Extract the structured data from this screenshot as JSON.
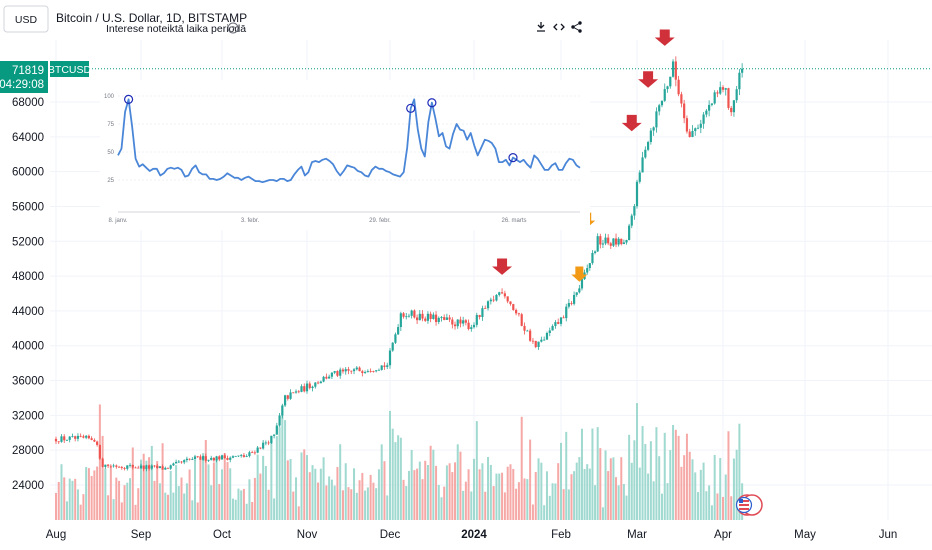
{
  "header": {
    "currency_button": "USD",
    "title": "Bitcoin / U.S. Dollar, 1D, BITSTAMP",
    "help_icon": "question-mark-circle-icon",
    "toolbar_icons": [
      "download-icon",
      "embed-code-icon",
      "share-icon"
    ]
  },
  "price_scale": {
    "current_price": "71819",
    "countdown": "04:29:08",
    "symbol": "BTCUSD",
    "current_value": 71819
  },
  "colors": {
    "up": "#26a69a",
    "down": "#ef5350",
    "up_volume": "#9fd9cf",
    "down_volume": "#f5a8a6",
    "arrow_red": "#d0303a",
    "arrow_orange": "#f29a16",
    "inset_line": "#4a86d8",
    "price_tag": "#089981"
  },
  "chart_data": [
    {
      "type": "candlestick",
      "title": "Bitcoin / U.S. Dollar, 1D, BITSTAMP",
      "x_ticks": [
        "Aug",
        "Sep",
        "Oct",
        "Nov",
        "Dec",
        "2024",
        "Feb",
        "Mar",
        "Apr",
        "May",
        "Jun"
      ],
      "y_ticks": [
        24000,
        28000,
        32000,
        36000,
        40000,
        44000,
        48000,
        52000,
        56000,
        60000,
        64000,
        68000
      ],
      "ylim": [
        20000,
        72500
      ],
      "grid": true,
      "anchors": [
        {
          "date": "2023-08-01",
          "price": 29300
        },
        {
          "date": "2023-08-15",
          "price": 29300
        },
        {
          "date": "2023-08-18",
          "price": 26300
        },
        {
          "date": "2023-09-10",
          "price": 25900
        },
        {
          "date": "2023-09-20",
          "price": 27000
        },
        {
          "date": "2023-10-10",
          "price": 27300
        },
        {
          "date": "2023-10-20",
          "price": 29600
        },
        {
          "date": "2023-10-24",
          "price": 34000
        },
        {
          "date": "2023-11-09",
          "price": 36600
        },
        {
          "date": "2023-11-30",
          "price": 37800
        },
        {
          "date": "2023-12-05",
          "price": 43800
        },
        {
          "date": "2023-12-31",
          "price": 42300
        },
        {
          "date": "2024-01-11",
          "price": 46500
        },
        {
          "date": "2024-01-23",
          "price": 39800
        },
        {
          "date": "2024-02-01",
          "price": 43000
        },
        {
          "date": "2024-02-09",
          "price": 47200
        },
        {
          "date": "2024-02-15",
          "price": 52000
        },
        {
          "date": "2024-02-26",
          "price": 51700
        },
        {
          "date": "2024-03-04",
          "price": 63000
        },
        {
          "date": "2024-03-14",
          "price": 72000
        },
        {
          "date": "2024-03-20",
          "price": 64000
        },
        {
          "date": "2024-04-01",
          "price": 69800
        },
        {
          "date": "2024-04-04",
          "price": 67000
        },
        {
          "date": "2024-04-08",
          "price": 71819
        }
      ],
      "arrows": [
        {
          "date": "2024-01-11",
          "price": 47500,
          "color": "red"
        },
        {
          "date": "2024-02-08",
          "price": 46800,
          "color": "orange"
        },
        {
          "date": "2024-02-11",
          "price": 53000,
          "color": "orange"
        },
        {
          "date": "2024-02-28",
          "price": 64000,
          "color": "red"
        },
        {
          "date": "2024-03-05",
          "price": 69000,
          "color": "red"
        },
        {
          "date": "2024-03-11",
          "price": 73800,
          "color": "red"
        }
      ]
    },
    {
      "type": "line",
      "title": "Interese noteiktā laika periodā",
      "x_ticks": [
        "8. janv.",
        "3. febr.",
        "29. febr.",
        "26. marts"
      ],
      "y_ticks": [
        25,
        50,
        75,
        100
      ],
      "ylim": [
        0,
        105
      ],
      "series": [
        {
          "values": [
            47,
            53,
            86,
            97,
            73,
            44,
            37,
            39,
            36,
            33,
            35,
            35,
            29,
            31,
            35,
            36,
            35,
            36,
            34,
            28,
            29,
            35,
            38,
            32,
            30,
            30,
            26,
            26,
            25,
            26,
            28,
            31,
            29,
            27,
            27,
            25,
            27,
            28,
            26,
            24,
            24,
            23,
            24,
            25,
            25,
            24,
            26,
            26,
            24,
            25,
            30,
            34,
            37,
            29,
            32,
            41,
            42,
            41,
            43,
            44,
            42,
            39,
            33,
            29,
            33,
            38,
            37,
            36,
            33,
            32,
            29,
            28,
            34,
            37,
            35,
            35,
            33,
            32,
            30,
            29,
            28,
            32,
            54,
            89,
            97,
            70,
            53,
            46,
            77,
            94,
            80,
            64,
            67,
            55,
            53,
            66,
            75,
            70,
            69,
            61,
            67,
            56,
            47,
            54,
            61,
            60,
            58,
            53,
            41,
            41,
            43,
            38,
            45,
            43,
            41,
            43,
            39,
            36,
            47,
            44,
            39,
            34,
            34,
            38,
            40,
            34,
            34,
            40,
            44,
            43,
            38,
            36
          ]
        }
      ],
      "markers": [
        3,
        83,
        89,
        112
      ]
    }
  ]
}
